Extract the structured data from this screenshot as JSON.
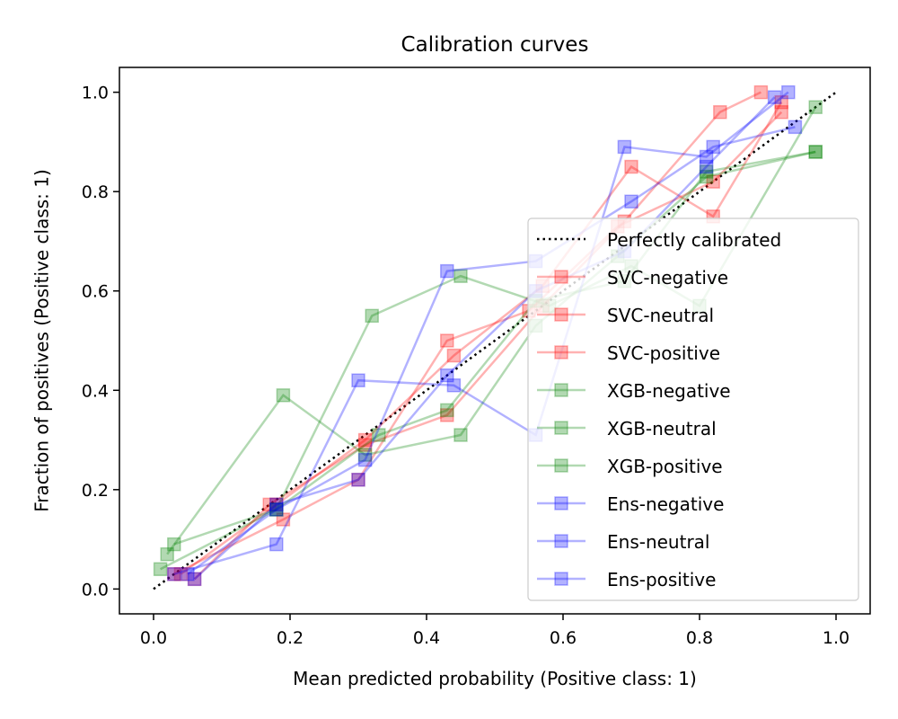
{
  "chart_data": {
    "type": "line",
    "title": "Calibration curves",
    "xlabel": "Mean predicted probability (Positive class: 1)",
    "ylabel": "Fraction of positives (Positive class: 1)",
    "xlim": [
      -0.05,
      1.05
    ],
    "ylim": [
      -0.05,
      1.05
    ],
    "xticks": [
      "0.0",
      "0.2",
      "0.4",
      "0.6",
      "0.8",
      "1.0"
    ],
    "yticks": [
      "0.0",
      "0.2",
      "0.4",
      "0.6",
      "0.8",
      "1.0"
    ],
    "grid": false,
    "legend_position": "lower-right",
    "reference": {
      "name": "Perfectly calibrated",
      "x": [
        0,
        1
      ],
      "y": [
        0,
        1
      ],
      "color": "#000000",
      "style": "dotted"
    },
    "series": [
      {
        "name": "SVC-negative",
        "color": "#ff0000",
        "marker": "square",
        "x": [
          0.04,
          0.18,
          0.31,
          0.44,
          0.57,
          0.7,
          0.82,
          0.92
        ],
        "y": [
          0.03,
          0.17,
          0.3,
          0.47,
          0.61,
          0.85,
          0.75,
          0.98
        ]
      },
      {
        "name": "SVC-neutral",
        "color": "#ff0000",
        "marker": "square",
        "x": [
          0.06,
          0.17,
          0.31,
          0.43,
          0.57,
          0.69,
          0.83,
          0.89
        ],
        "y": [
          0.02,
          0.17,
          0.29,
          0.35,
          0.57,
          0.74,
          0.96,
          1.0
        ]
      },
      {
        "name": "SVC-positive",
        "color": "#ff0000",
        "marker": "square",
        "x": [
          0.03,
          0.19,
          0.3,
          0.43,
          0.55,
          0.68,
          0.82,
          0.92
        ],
        "y": [
          0.03,
          0.14,
          0.22,
          0.5,
          0.56,
          0.73,
          0.82,
          0.96
        ]
      },
      {
        "name": "XGB-negative",
        "color": "#008000",
        "marker": "square",
        "x": [
          0.02,
          0.19,
          0.31,
          0.45,
          0.56,
          0.68,
          0.81,
          0.97
        ],
        "y": [
          0.07,
          0.39,
          0.27,
          0.31,
          0.53,
          0.67,
          0.83,
          0.88
        ]
      },
      {
        "name": "XGB-neutral",
        "color": "#008000",
        "marker": "square",
        "x": [
          0.03,
          0.18,
          0.32,
          0.45,
          0.58,
          0.7,
          0.8,
          0.97
        ],
        "y": [
          0.09,
          0.16,
          0.55,
          0.63,
          0.57,
          0.65,
          0.57,
          0.97
        ]
      },
      {
        "name": "XGB-positive",
        "color": "#008000",
        "marker": "square",
        "x": [
          0.01,
          0.18,
          0.33,
          0.43,
          0.56,
          0.69,
          0.81,
          0.97
        ],
        "y": [
          0.04,
          0.16,
          0.31,
          0.36,
          0.58,
          0.62,
          0.84,
          0.88
        ]
      },
      {
        "name": "Ens-negative",
        "color": "#0000ff",
        "marker": "square",
        "x": [
          0.03,
          0.18,
          0.3,
          0.44,
          0.56,
          0.69,
          0.81,
          0.93
        ],
        "y": [
          0.03,
          0.09,
          0.42,
          0.41,
          0.31,
          0.89,
          0.87,
          1.0
        ]
      },
      {
        "name": "Ens-neutral",
        "color": "#0000ff",
        "marker": "square",
        "x": [
          0.05,
          0.18,
          0.31,
          0.43,
          0.56,
          0.7,
          0.82,
          0.94
        ],
        "y": [
          0.03,
          0.16,
          0.26,
          0.64,
          0.66,
          0.78,
          0.89,
          0.93
        ]
      },
      {
        "name": "Ens-positive",
        "color": "#0000ff",
        "marker": "square",
        "x": [
          0.06,
          0.18,
          0.3,
          0.43,
          0.56,
          0.69,
          0.81,
          0.91
        ],
        "y": [
          0.02,
          0.17,
          0.22,
          0.43,
          0.6,
          0.68,
          0.85,
          0.99
        ]
      }
    ]
  }
}
